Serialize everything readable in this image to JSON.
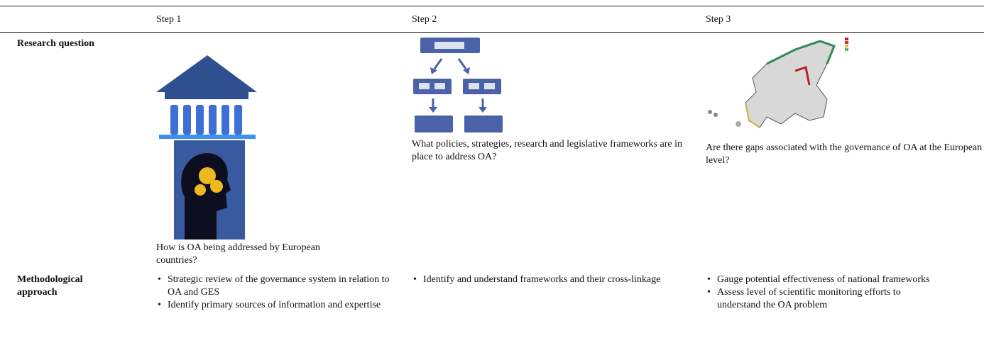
{
  "table": {
    "columns": [
      "Step 1",
      "Step 2",
      "Step 3"
    ],
    "rows": [
      {
        "label": "Research question",
        "cells": [
          "How is OA being addressed by European countries?",
          "What policies, strategies, research and legislative frameworks are in place to address OA?",
          "Are there gaps associated with the governance of OA at the European level?"
        ]
      },
      {
        "label": "Methodological approach",
        "cells": [
          [
            "Strategic review of the governance system in relation to OA and GES",
            "Identify primary sources of information and expertise"
          ],
          [
            "Identify and understand frameworks and their cross-linkage"
          ],
          [
            "Gauge potential effectiveness of national frameworks",
            "Assess level of scientific monitoring efforts to understand the OA problem"
          ]
        ]
      }
    ]
  }
}
